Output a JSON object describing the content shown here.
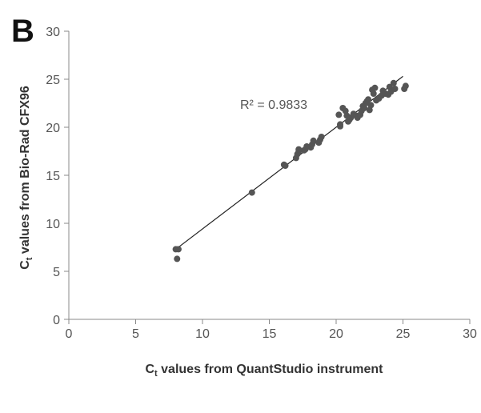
{
  "panel_label": "B",
  "chart_data": {
    "type": "scatter",
    "xlabel": "C",
    "xlabel_sub": "t",
    "xlabel_rest": " values from QuantStudio instrument",
    "ylabel": "C",
    "ylabel_sub": "t",
    "ylabel_rest": " values from Bio-Rad CFX96",
    "xlim": [
      0,
      30
    ],
    "ylim": [
      0,
      30
    ],
    "xticks": [
      "0",
      "5",
      "10",
      "15",
      "20",
      "25",
      "30"
    ],
    "yticks": [
      "0",
      "5",
      "10",
      "15",
      "20",
      "25",
      "30"
    ],
    "annotation": "R² = 0.9833",
    "grid": false,
    "trendline": {
      "x": [
        8.1,
        25.0
      ],
      "y": [
        7.4,
        25.3
      ]
    },
    "points": [
      [
        8.0,
        7.3
      ],
      [
        8.2,
        7.3
      ],
      [
        8.1,
        6.3
      ],
      [
        13.7,
        13.2
      ],
      [
        16.2,
        16.0
      ],
      [
        16.1,
        16.1
      ],
      [
        17.0,
        16.8
      ],
      [
        17.1,
        17.2
      ],
      [
        17.2,
        17.5
      ],
      [
        17.2,
        17.7
      ],
      [
        17.6,
        17.6
      ],
      [
        17.8,
        18.0
      ],
      [
        17.7,
        17.7
      ],
      [
        18.1,
        17.9
      ],
      [
        18.2,
        18.2
      ],
      [
        18.3,
        18.6
      ],
      [
        18.7,
        18.4
      ],
      [
        18.8,
        18.7
      ],
      [
        18.9,
        19.0
      ],
      [
        20.2,
        21.3
      ],
      [
        20.3,
        20.1
      ],
      [
        20.3,
        20.3
      ],
      [
        20.5,
        22.0
      ],
      [
        20.7,
        21.7
      ],
      [
        20.8,
        21.2
      ],
      [
        20.9,
        20.6
      ],
      [
        21.0,
        20.8
      ],
      [
        21.1,
        21.0
      ],
      [
        21.3,
        21.4
      ],
      [
        21.5,
        21.2
      ],
      [
        21.6,
        21.0
      ],
      [
        21.8,
        21.3
      ],
      [
        21.9,
        21.7
      ],
      [
        22.0,
        22.2
      ],
      [
        22.1,
        22.0
      ],
      [
        22.2,
        22.5
      ],
      [
        22.3,
        22.7
      ],
      [
        22.4,
        22.9
      ],
      [
        22.5,
        21.8
      ],
      [
        22.6,
        22.3
      ],
      [
        22.7,
        23.9
      ],
      [
        22.8,
        23.5
      ],
      [
        22.9,
        24.1
      ],
      [
        23.0,
        22.8
      ],
      [
        23.2,
        23.0
      ],
      [
        23.4,
        23.3
      ],
      [
        23.5,
        23.8
      ],
      [
        23.7,
        23.5
      ],
      [
        23.9,
        23.4
      ],
      [
        24.0,
        24.2
      ],
      [
        24.1,
        23.7
      ],
      [
        24.3,
        24.6
      ],
      [
        24.4,
        24.0
      ],
      [
        25.1,
        24.0
      ],
      [
        25.2,
        24.3
      ]
    ],
    "point_color": "#555555",
    "line_color": "#222222"
  }
}
